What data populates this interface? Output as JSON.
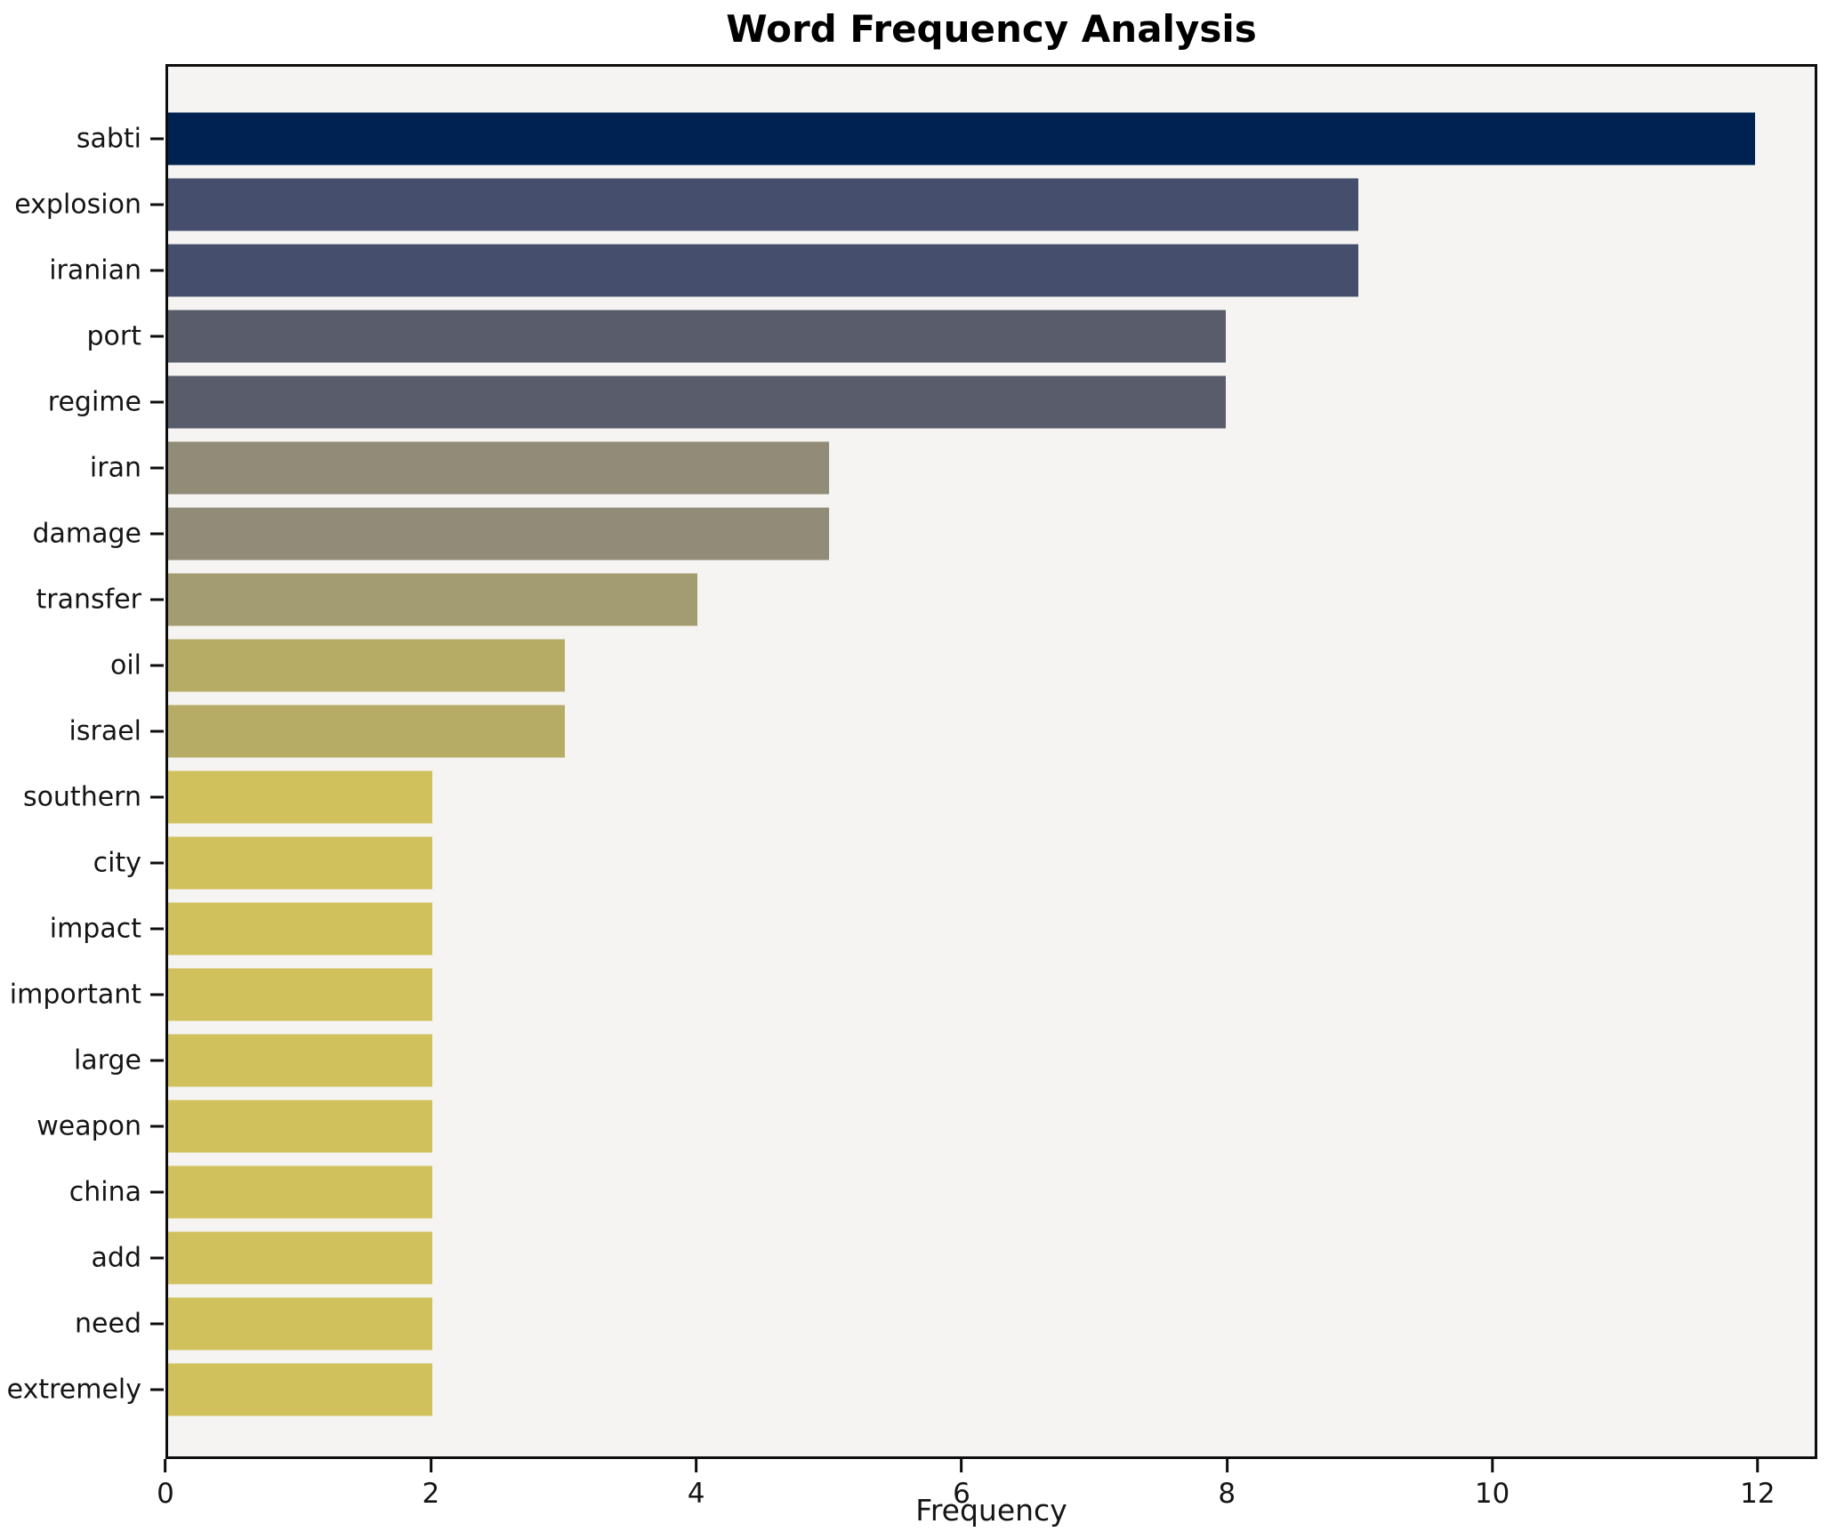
{
  "chart_data": {
    "type": "bar",
    "orientation": "horizontal",
    "title": "Word Frequency Analysis",
    "xlabel": "Frequency",
    "ylabel": "",
    "categories": [
      "sabti",
      "explosion",
      "iranian",
      "port",
      "regime",
      "iran",
      "damage",
      "transfer",
      "oil",
      "israel",
      "southern",
      "city",
      "impact",
      "important",
      "large",
      "weapon",
      "china",
      "add",
      "need",
      "extremely"
    ],
    "values": [
      12,
      9,
      9,
      8,
      8,
      5,
      5,
      4,
      3,
      3,
      2,
      2,
      2,
      2,
      2,
      2,
      2,
      2,
      2,
      2
    ],
    "bar_colors": [
      "#002253",
      "#454f6d",
      "#454f6d",
      "#585c6b",
      "#585c6b",
      "#918c78",
      "#918c78",
      "#a49c71",
      "#b6ac66",
      "#b6ac66",
      "#d0c15c",
      "#d0c15c",
      "#d0c15c",
      "#d0c15c",
      "#d0c15c",
      "#d0c15c",
      "#d0c15c",
      "#d0c15c",
      "#d0c15c",
      "#d0c15c"
    ],
    "xlim": [
      0,
      12.45
    ],
    "xticks": [
      0,
      2,
      4,
      6,
      8,
      10,
      12
    ],
    "grid": false,
    "legend": false,
    "plot_background": "#f5f4f2",
    "figure_background": "#ffffff",
    "bar_max_color": "#002253",
    "bar_min_color": "#d0c15c"
  }
}
